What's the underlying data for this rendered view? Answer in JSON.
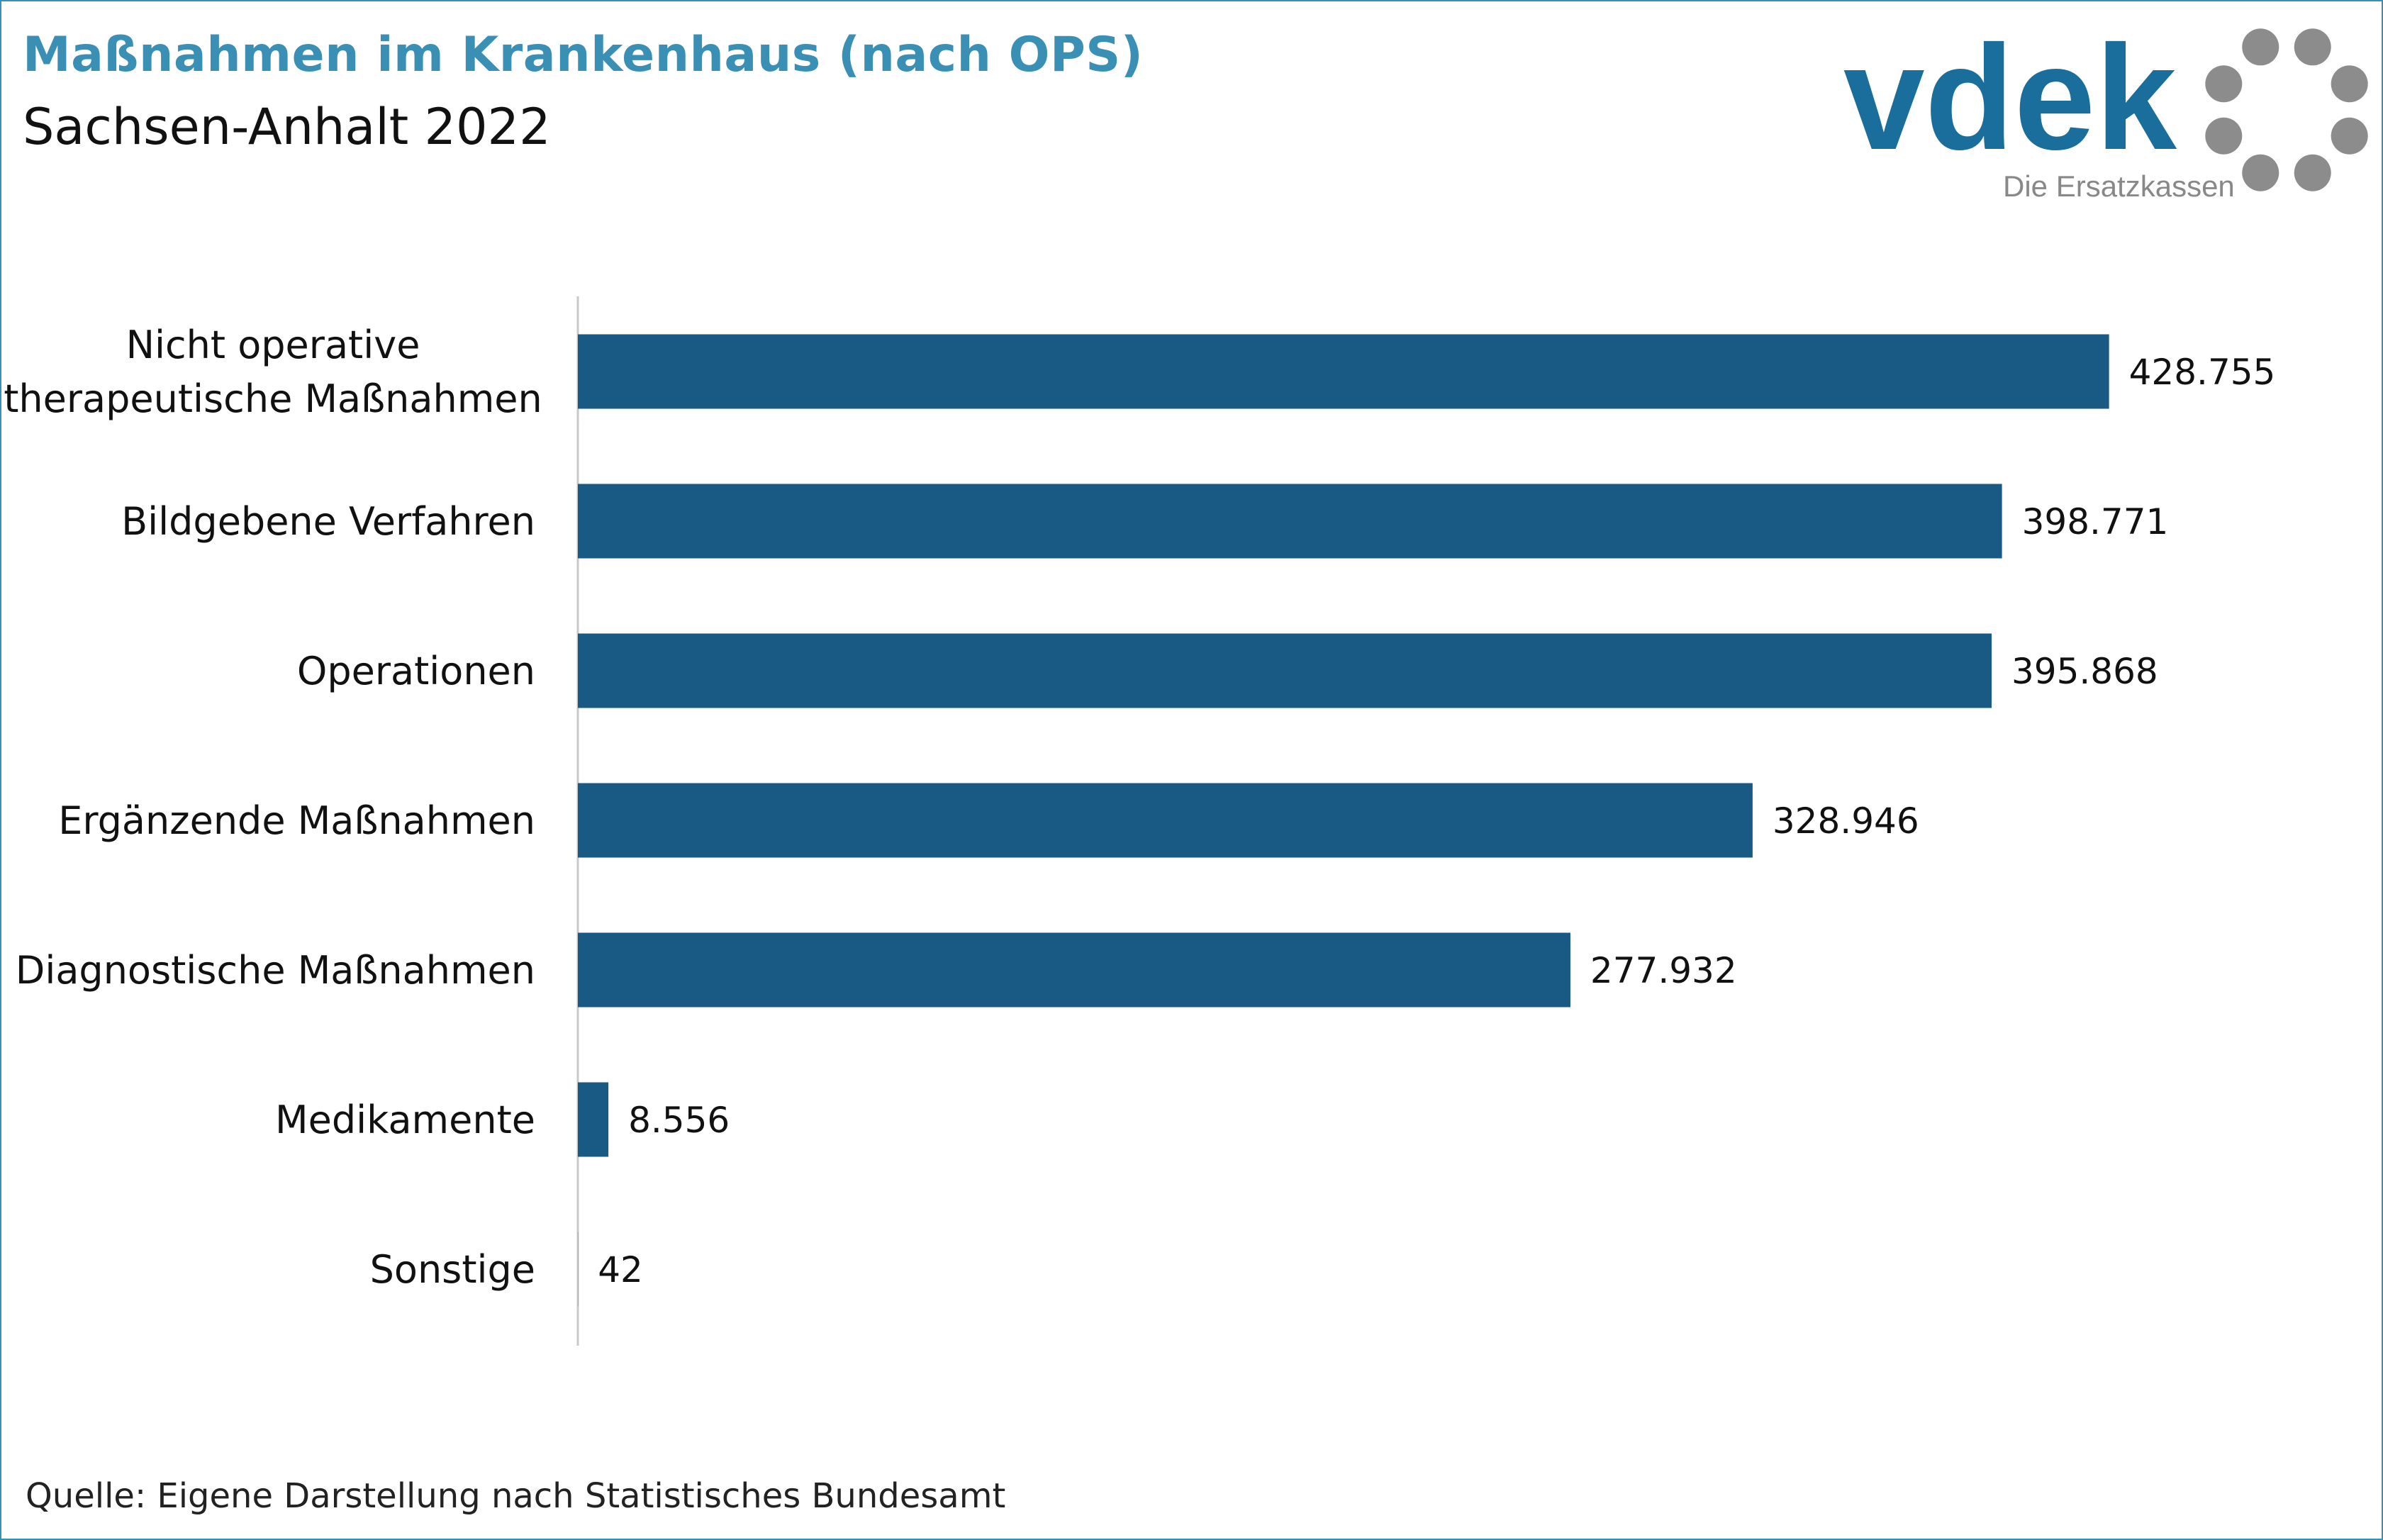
{
  "title": "Maßnahmen im Krankenhaus (nach OPS)",
  "subtitle": "Sachsen-Anhalt 2022",
  "source": "Quelle: Eigene Darstellung nach Statistisches Bundesamt",
  "logo": {
    "wordmark": "vdek",
    "tagline": "Die Ersatzkassen",
    "brand_color": "#1a6e9c",
    "ring_color": "#8c8c8c"
  },
  "colors": {
    "bar": "#185a84",
    "title": "#3a8fb5",
    "axis": "#c8c8c8"
  },
  "chart_data": {
    "type": "bar",
    "orientation": "horizontal",
    "categories": [
      "Nicht operative therapeutische Maßnahmen",
      "Bildgebene Verfahren",
      "Operationen",
      "Ergänzende Maßnahmen",
      "Diagnostische Maßnahmen",
      "Medikamente",
      "Sonstige"
    ],
    "category_lines": [
      [
        "Nicht operative",
        "therapeutische Maßnahmen"
      ],
      [
        "Bildgebene Verfahren"
      ],
      [
        "Operationen"
      ],
      [
        "Ergänzende Maßnahmen"
      ],
      [
        "Diagnostische Maßnahmen"
      ],
      [
        "Medikamente"
      ],
      [
        "Sonstige"
      ]
    ],
    "values": [
      428755,
      398771,
      395868,
      328946,
      277932,
      8556,
      42
    ],
    "value_labels": [
      "428.755",
      "398.771",
      "395.868",
      "328.946",
      "277.932",
      "8.556",
      "42"
    ],
    "xlim": [
      0,
      460000
    ],
    "grid": false,
    "legend": "none"
  }
}
